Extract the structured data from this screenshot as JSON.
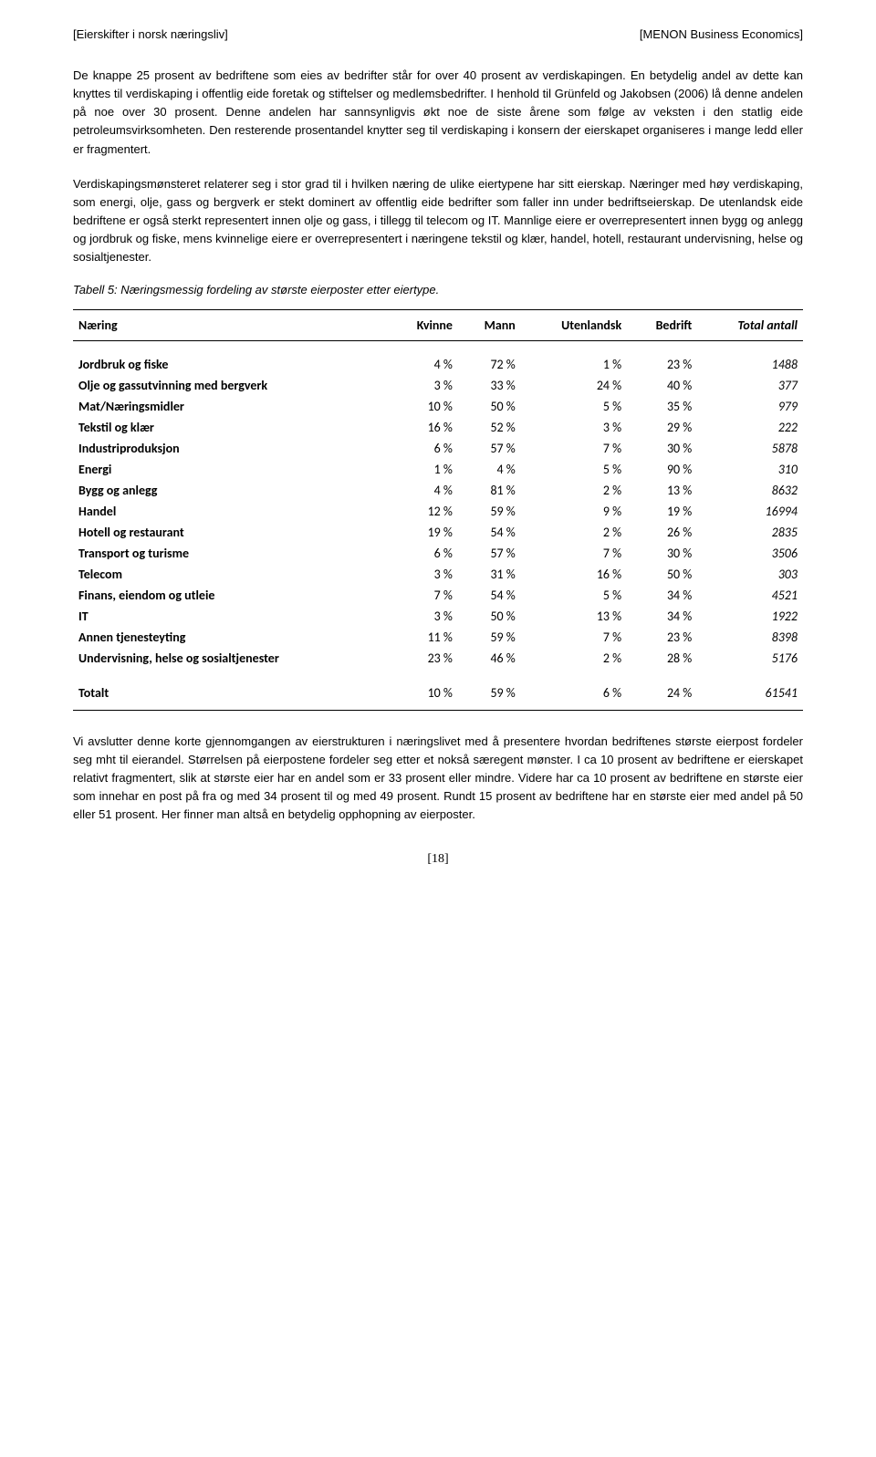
{
  "header": {
    "left": "[Eierskifter i norsk næringsliv]",
    "right": "[MENON Business Economics]"
  },
  "para1": "De knappe 25 prosent av bedriftene som eies av bedrifter står for over 40 prosent av verdiskapingen. En betydelig andel av dette kan knyttes til verdiskaping i offentlig eide foretak og stiftelser og medlemsbedrifter. I henhold til Grünfeld og Jakobsen (2006) lå denne andelen på noe over 30 prosent. Denne andelen har sannsynligvis økt noe de siste årene som følge av veksten i den statlig eide petroleumsvirksomheten. Den resterende prosentandel knytter seg til verdiskaping i konsern der eierskapet organiseres i mange ledd eller er fragmentert.",
  "para2": "Verdiskapingsmønsteret relaterer seg i stor grad til i hvilken næring de ulike eiertypene har sitt eierskap. Næringer med høy verdiskaping, som energi, olje, gass og bergverk er stekt dominert av offentlig eide bedrifter som faller inn under bedriftseierskap. De utenlandsk eide bedriftene er også sterkt representert innen olje og gass, i tillegg til telecom og IT. Mannlige eiere er overrepresentert innen bygg og anlegg og jordbruk og fiske, mens kvinnelige eiere er overrepresentert i næringene tekstil og klær, handel, hotell, restaurant undervisning, helse og sosialtjenester.",
  "caption": "Tabell 5: Næringsmessig fordeling av største eierposter etter eiertype.",
  "table": {
    "columns": [
      "Næring",
      "Kvinne",
      "Mann",
      "Utenlandsk",
      "Bedrift",
      "Total antall"
    ],
    "rows": [
      [
        "Jordbruk og fiske",
        "4 %",
        "72 %",
        "1 %",
        "23 %",
        "1488"
      ],
      [
        "Olje og gassutvinning med bergverk",
        "3 %",
        "33 %",
        "24 %",
        "40 %",
        "377"
      ],
      [
        "Mat/Næringsmidler",
        "10 %",
        "50 %",
        "5 %",
        "35 %",
        "979"
      ],
      [
        "Tekstil og klær",
        "16 %",
        "52 %",
        "3 %",
        "29 %",
        "222"
      ],
      [
        "Industriproduksjon",
        "6 %",
        "57 %",
        "7 %",
        "30 %",
        "5878"
      ],
      [
        "Energi",
        "1 %",
        "4 %",
        "5 %",
        "90 %",
        "310"
      ],
      [
        "Bygg og anlegg",
        "4 %",
        "81 %",
        "2 %",
        "13 %",
        "8632"
      ],
      [
        "Handel",
        "12 %",
        "59 %",
        "9 %",
        "19 %",
        "16994"
      ],
      [
        "Hotell og restaurant",
        "19 %",
        "54 %",
        "2 %",
        "26 %",
        "2835"
      ],
      [
        "Transport og turisme",
        "6 %",
        "57 %",
        "7 %",
        "30 %",
        "3506"
      ],
      [
        "Telecom",
        "3 %",
        "31 %",
        "16 %",
        "50 %",
        "303"
      ],
      [
        "Finans, eiendom og utleie",
        "7 %",
        "54 %",
        "5 %",
        "34 %",
        "4521"
      ],
      [
        "IT",
        "3 %",
        "50 %",
        "13 %",
        "34 %",
        "1922"
      ],
      [
        "Annen tjenesteyting",
        "11 %",
        "59 %",
        "7 %",
        "23 %",
        "8398"
      ],
      [
        "Undervisning, helse og sosialtjenester",
        "23 %",
        "46 %",
        "2 %",
        "28 %",
        "5176"
      ]
    ],
    "total": [
      "Totalt",
      "10 %",
      "59 %",
      "6 %",
      "24 %",
      "61541"
    ]
  },
  "para3": "Vi avslutter denne korte gjennomgangen av eierstrukturen i næringslivet med å presentere hvordan bedriftenes største eierpost fordeler seg mht til eierandel. Størrelsen på eierpostene fordeler seg etter et nokså særegent mønster. I ca 10 prosent av bedriftene er eierskapet relativt fragmentert, slik at største eier har en andel som er 33 prosent eller mindre. Videre har ca 10 prosent av bedriftene en største eier som innehar en post på fra og med 34 prosent til og med 49 prosent. Rundt 15 prosent av bedriftene har en største eier med andel på 50 eller 51 prosent. Her finner man altså en betydelig opphopning av eierposter.",
  "pagenum": "[18]"
}
